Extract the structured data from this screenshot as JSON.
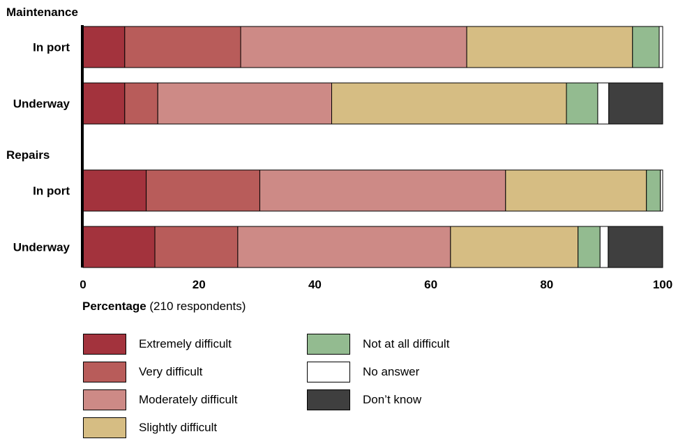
{
  "chart_data": {
    "type": "bar",
    "orientation": "horizontal",
    "stacked": true,
    "groups": [
      {
        "title": "Maintenance",
        "bars": [
          {
            "label": "In port",
            "values": [
              7.2,
              20.0,
              39.0,
              28.6,
              4.6,
              0.6,
              0.0
            ]
          },
          {
            "label": "Underway",
            "values": [
              7.2,
              5.7,
              30.0,
              40.5,
              5.4,
              1.9,
              9.3
            ]
          }
        ]
      },
      {
        "title": "Repairs",
        "bars": [
          {
            "label": "In port",
            "values": [
              10.9,
              19.6,
              42.4,
              24.3,
              2.4,
              0.4,
              0.0
            ]
          },
          {
            "label": "Underway",
            "values": [
              12.4,
              14.3,
              36.7,
              22.0,
              3.8,
              1.4,
              9.4
            ]
          }
        ]
      }
    ],
    "series": [
      {
        "name": "Extremely difficult",
        "color": "#a3333d"
      },
      {
        "name": "Very difficult",
        "color": "#b85c5a"
      },
      {
        "name": "Moderately difficult",
        "color": "#cd8a86"
      },
      {
        "name": "Slightly difficult",
        "color": "#d6bd83"
      },
      {
        "name": "Not at all difficult",
        "color": "#93bb90"
      },
      {
        "name": "No answer",
        "color": "#ffffff"
      },
      {
        "name": "Don’t know",
        "color": "#3f3f3f"
      }
    ],
    "xlim": [
      0,
      100
    ],
    "xticks": [
      0,
      20,
      40,
      60,
      80,
      100
    ],
    "xlabel_bold": "Percentage",
    "xlabel_rest": " (210 respondents)",
    "legend_position": "bottom"
  }
}
